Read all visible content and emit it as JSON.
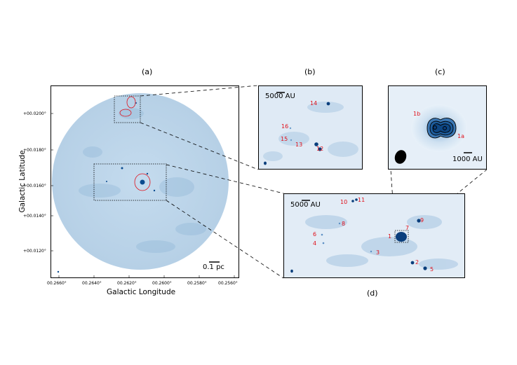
{
  "panels": {
    "a": "(a)",
    "b": "(b)",
    "c": "(c)",
    "d": "(d)"
  },
  "main_plot": {
    "ylabel": "Galactic Latitude",
    "xlabel": "Galactic Longitude",
    "yticks": [
      "+00.0200°",
      "+00.0180°",
      "+00.0160°",
      "+00.0140°",
      "+00.0120°"
    ],
    "xticks": [
      "00.2660°",
      "00.2640°",
      "00.2620°",
      "00.2600°",
      "00.2580°",
      "00.2560°"
    ],
    "scalebar": "0.1 pc"
  },
  "panel_b": {
    "scalebar": "5000 AU",
    "sources": [
      "14",
      "16",
      "15",
      "13",
      "12"
    ]
  },
  "panel_c": {
    "scalebar": "1000 AU",
    "sources": [
      "1b",
      "1a"
    ]
  },
  "panel_d": {
    "scalebar": "5000 AU",
    "sources": [
      "10",
      "11",
      "8",
      "6",
      "4",
      "1",
      "7",
      "9",
      "3",
      "2",
      "5"
    ]
  },
  "colors": {
    "map": "#b9d3e8",
    "source": "#0a3e7c",
    "contour": "#e0101a"
  }
}
